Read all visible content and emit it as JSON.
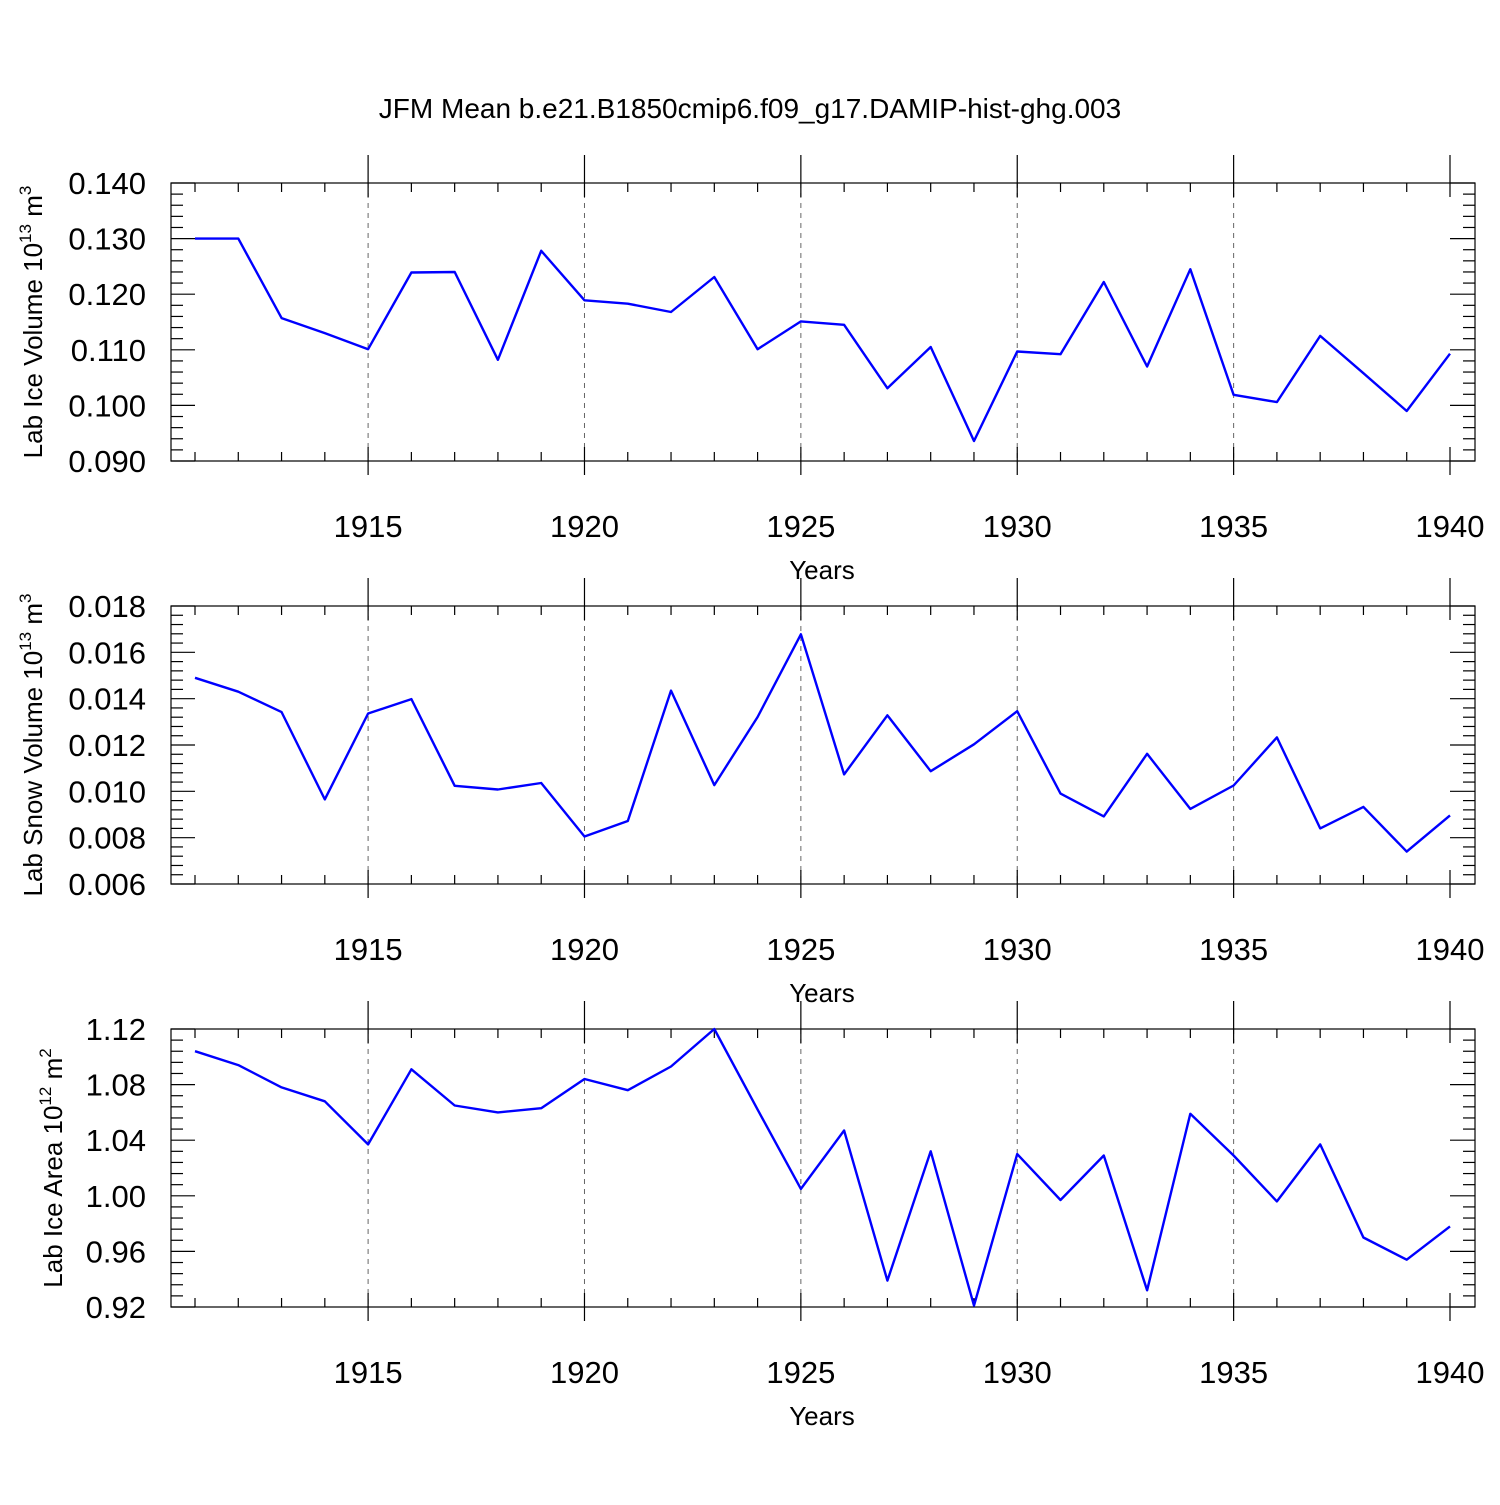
{
  "figure_title": "JFM Mean b.e21.B1850cmip6.f09_g17.DAMIP-hist-ghg.003",
  "colors": {
    "line": "#0000ff",
    "axes": "#000000",
    "grid": "#666666"
  },
  "chart_data": [
    {
      "type": "line",
      "xlabel": "Years",
      "ylabel": {
        "text": "Lab Ice Volume 10",
        "exponent": "13",
        "unit_base": "m",
        "unit_exponent": "3"
      },
      "xlim": [
        1911,
        1940
      ],
      "ylim": [
        0.09,
        0.14
      ],
      "x_ticks": [
        "1915",
        "1920",
        "1925",
        "1930",
        "1935",
        "1940"
      ],
      "y_ticks": [
        "0.090",
        "0.100",
        "0.110",
        "0.120",
        "0.130",
        "0.140"
      ],
      "grid": "dashed vertical lines at 1915, 1920, 1925, 1930, 1935",
      "series": [
        {
          "name": "Lab Ice Volume",
          "x": [
            1911,
            1912,
            1913,
            1914,
            1915,
            1916,
            1917,
            1918,
            1919,
            1920,
            1921,
            1922,
            1923,
            1924,
            1925,
            1926,
            1927,
            1928,
            1929,
            1930,
            1931,
            1932,
            1933,
            1934,
            1935,
            1936,
            1937,
            1938,
            1939,
            1940
          ],
          "values": [
            0.13,
            0.13,
            0.1157,
            0.113,
            0.1101,
            0.1239,
            0.124,
            0.1082,
            0.1278,
            0.1189,
            0.1183,
            0.1168,
            0.1231,
            0.1101,
            0.1151,
            0.1145,
            0.1031,
            0.1105,
            0.0936,
            0.1097,
            0.1092,
            0.1222,
            0.107,
            0.1245,
            0.1019,
            0.1006,
            0.1125,
            0.1058,
            0.099,
            0.1093
          ]
        }
      ]
    },
    {
      "type": "line",
      "xlabel": "Years",
      "ylabel": {
        "text": "Lab Snow Volume 10",
        "exponent": "13",
        "unit_base": "m",
        "unit_exponent": "3"
      },
      "xlim": [
        1911,
        1940
      ],
      "ylim": [
        0.006,
        0.018
      ],
      "x_ticks": [
        "1915",
        "1920",
        "1925",
        "1930",
        "1935",
        "1940"
      ],
      "y_ticks": [
        "0.006",
        "0.008",
        "0.010",
        "0.012",
        "0.014",
        "0.016",
        "0.018"
      ],
      "grid": "dashed vertical lines at 1915, 1920, 1925, 1930, 1935",
      "series": [
        {
          "name": "Lab Snow Volume",
          "x": [
            1911,
            1912,
            1913,
            1914,
            1915,
            1916,
            1917,
            1918,
            1919,
            1920,
            1921,
            1922,
            1923,
            1924,
            1925,
            1926,
            1927,
            1928,
            1929,
            1930,
            1931,
            1932,
            1933,
            1934,
            1935,
            1936,
            1937,
            1938,
            1939,
            1940
          ],
          "values": [
            0.0149,
            0.0143,
            0.01342,
            0.00965,
            0.01336,
            0.01398,
            0.01024,
            0.01008,
            0.01036,
            0.00805,
            0.00872,
            0.01435,
            0.01027,
            0.01321,
            0.01678,
            0.01073,
            0.01328,
            0.01087,
            0.01203,
            0.01346,
            0.0099,
            0.00892,
            0.01162,
            0.00924,
            0.01025,
            0.01233,
            0.0084,
            0.00933,
            0.0074,
            0.00896
          ]
        }
      ]
    },
    {
      "type": "line",
      "xlabel": "Years",
      "ylabel": {
        "text": "Lab Ice Area 10",
        "exponent": "12",
        "unit_base": "m",
        "unit_exponent": "2"
      },
      "xlim": [
        1911,
        1940
      ],
      "ylim": [
        0.92,
        1.12
      ],
      "x_ticks": [
        "1915",
        "1920",
        "1925",
        "1930",
        "1935",
        "1940"
      ],
      "y_ticks": [
        "0.92",
        "0.96",
        "1.00",
        "1.04",
        "1.08",
        "1.12"
      ],
      "grid": "dashed vertical lines at 1915, 1920, 1925, 1930, 1935",
      "series": [
        {
          "name": "Lab Ice Area",
          "x": [
            1911,
            1912,
            1913,
            1914,
            1915,
            1916,
            1917,
            1918,
            1919,
            1920,
            1921,
            1922,
            1923,
            1924,
            1925,
            1926,
            1927,
            1928,
            1929,
            1930,
            1931,
            1932,
            1933,
            1934,
            1935,
            1936,
            1937,
            1938,
            1939,
            1940
          ],
          "values": [
            1.104,
            1.094,
            1.078,
            1.068,
            1.037,
            1.091,
            1.065,
            1.06,
            1.063,
            1.084,
            1.076,
            1.093,
            1.12,
            1.062,
            1.005,
            1.047,
            0.939,
            1.032,
            0.921,
            1.03,
            0.997,
            1.029,
            0.932,
            1.059,
            1.029,
            0.996,
            1.037,
            0.97,
            0.954,
            0.978
          ]
        }
      ]
    }
  ]
}
